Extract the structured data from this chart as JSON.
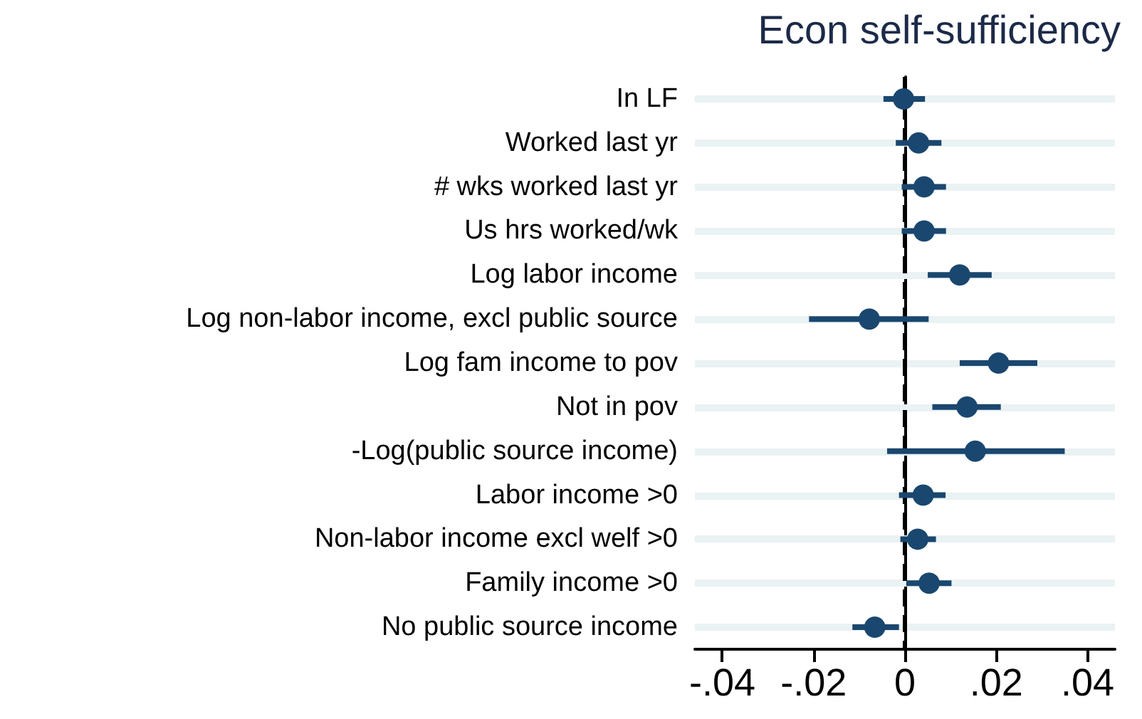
{
  "chart_data": {
    "type": "scatter",
    "orientation": "horizontal",
    "title": "Econ self-sufficiency",
    "categories": [
      "In LF",
      "Worked last yr",
      "# wks worked last yr",
      "Us hrs worked/wk",
      "Log labor income",
      "Log non-labor income, excl public source",
      "Log fam income to pov",
      "Not in pov",
      "-Log(public source income)",
      "Labor income >0",
      "Non-labor income excl welf >0",
      "Family income >0",
      "No public source income"
    ],
    "series": [
      {
        "color": "#1a476f",
        "values": [
          -0.0003,
          0.003,
          0.0042,
          0.0042,
          0.012,
          -0.0078,
          0.0205,
          0.0136,
          0.0154,
          0.004,
          0.0028,
          0.0053,
          -0.0066
        ],
        "errors": [
          [
            -0.0047,
            0.0044
          ],
          [
            -0.002,
            0.008
          ],
          [
            -0.0007,
            0.009
          ],
          [
            -0.0007,
            0.009
          ],
          [
            0.005,
            0.019
          ],
          [
            -0.021,
            0.0052
          ],
          [
            0.012,
            0.029
          ],
          [
            0.006,
            0.021
          ],
          [
            -0.0039,
            0.035
          ],
          [
            -0.0013,
            0.0089
          ],
          [
            -0.001,
            0.0068
          ],
          [
            0.0003,
            0.0102
          ],
          [
            -0.0115,
            -0.0013
          ]
        ]
      }
    ],
    "xlim": [
      -0.046,
      0.046
    ],
    "xticks": [
      {
        "value": -0.04,
        "label": "-.04"
      },
      {
        "value": -0.02,
        "label": "-.02"
      },
      0,
      {
        "value": 0.02,
        "label": ".02"
      },
      {
        "value": 0.04,
        "label": ".04"
      }
    ],
    "ref_lines": [
      {
        "axis": "x",
        "value": 0,
        "color": "#000000",
        "line_style": "dashed"
      }
    ],
    "grid": "y",
    "marker": "circle"
  }
}
